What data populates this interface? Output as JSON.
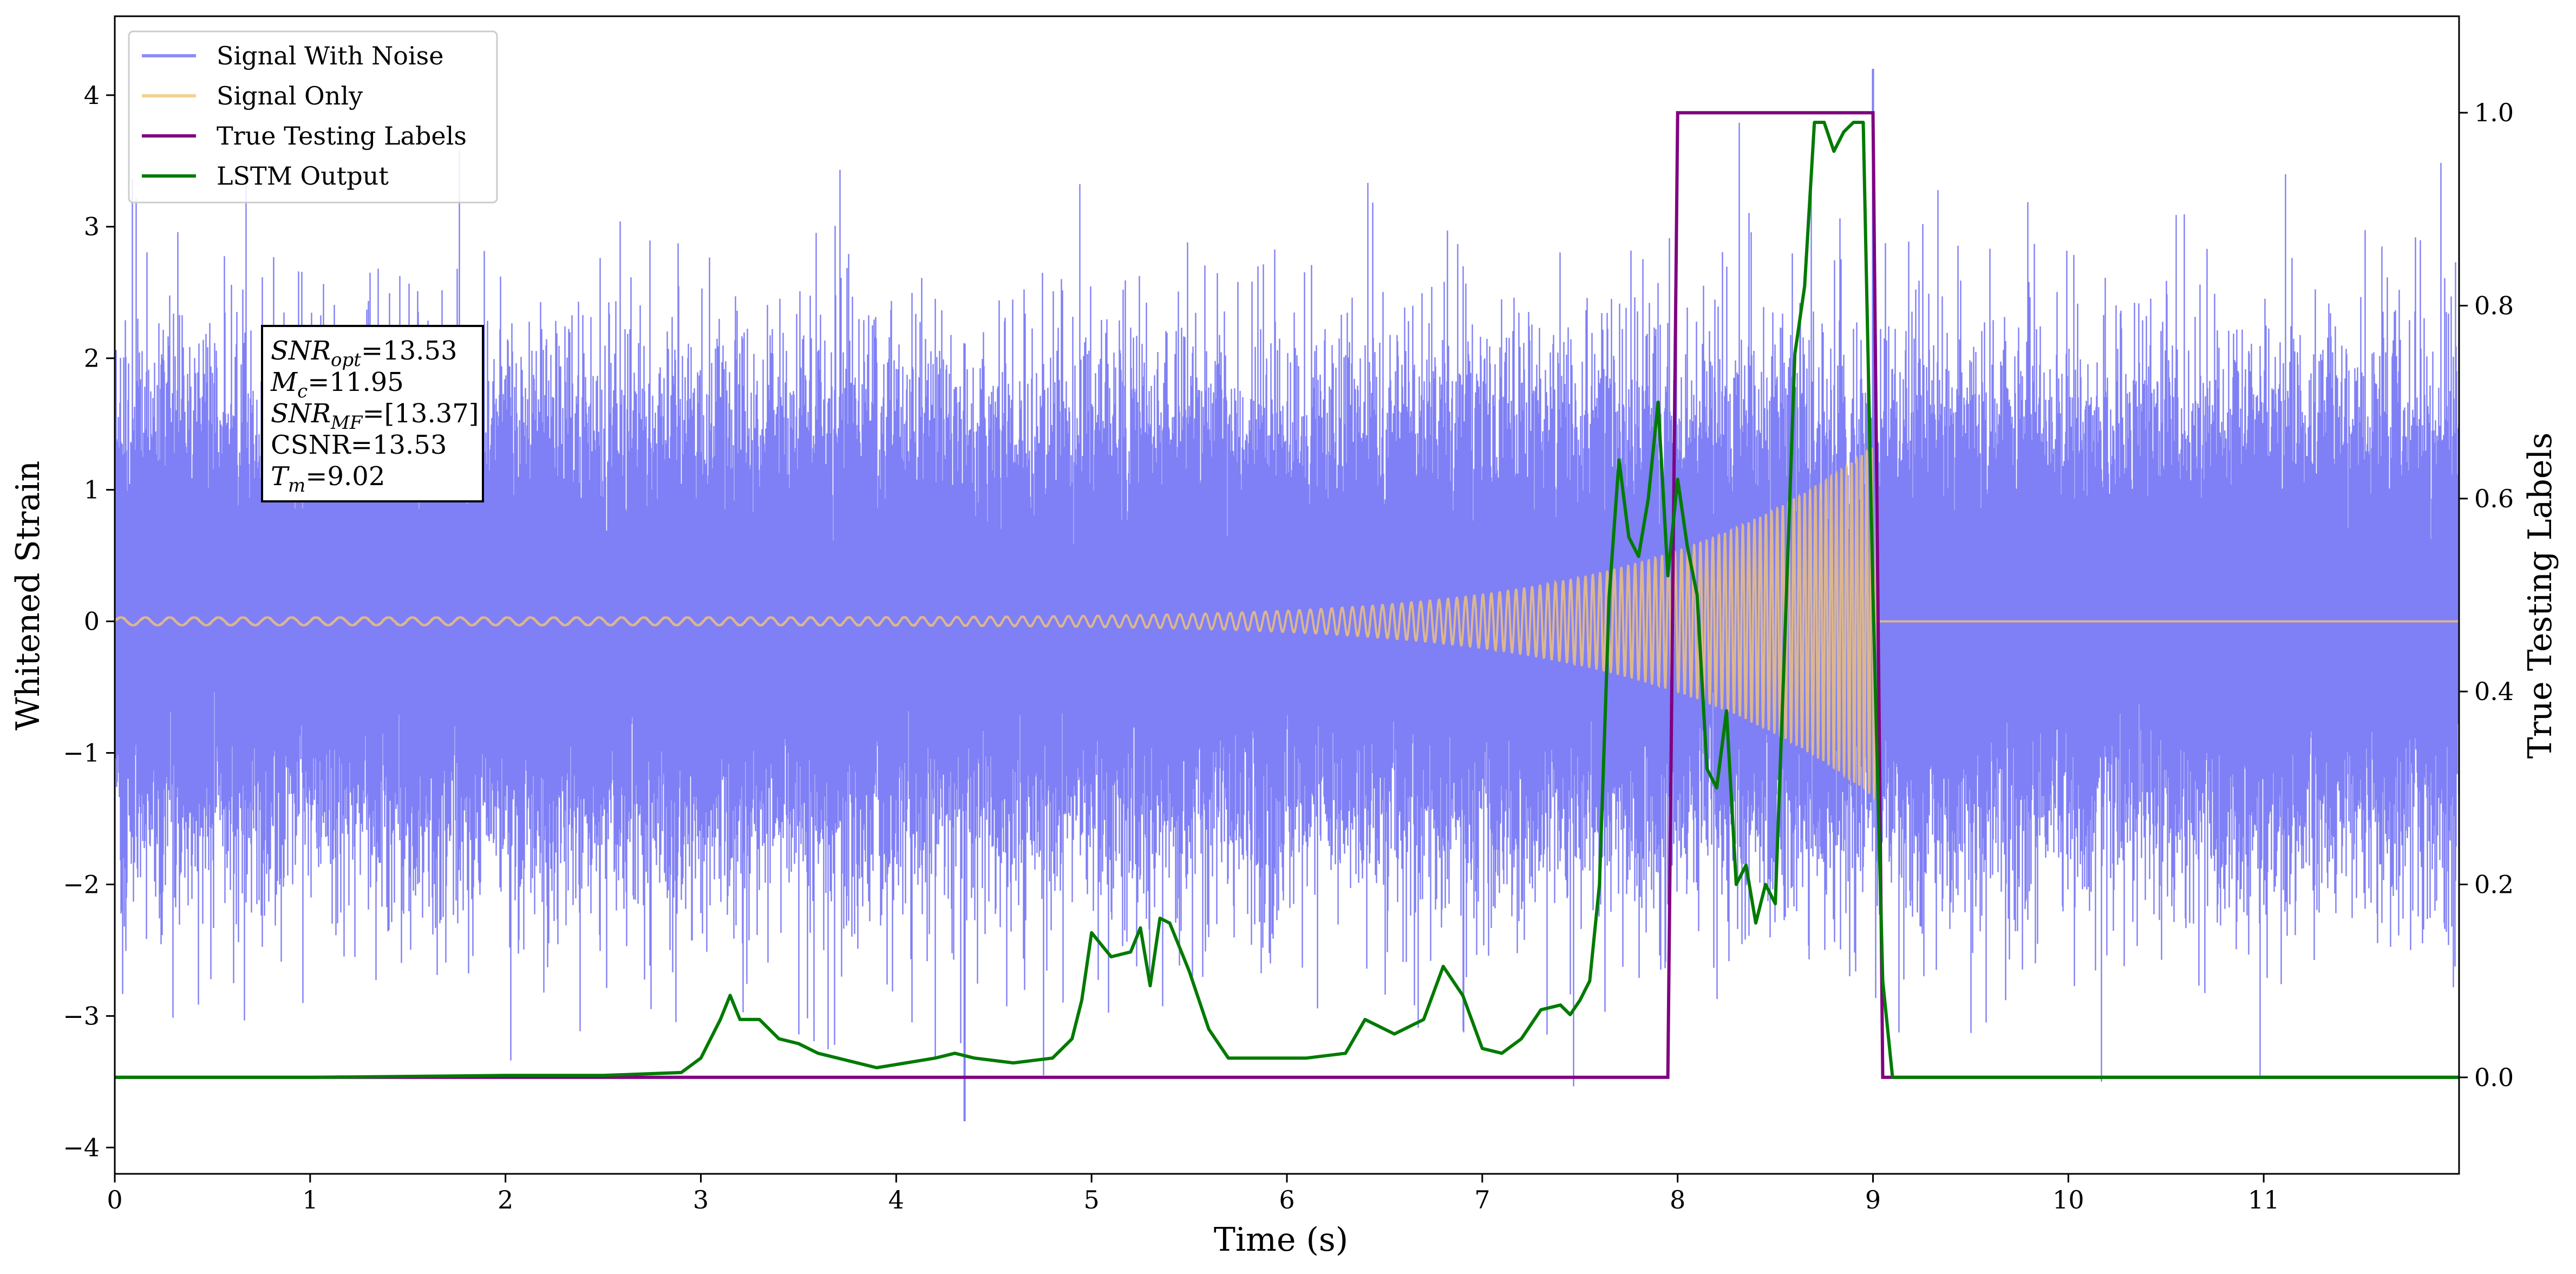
{
  "chart_data": {
    "type": "line",
    "xlabel": "Time (s)",
    "ylabel": "Whitened Strain",
    "ylabel_right": "True Testing Labels",
    "xlim": [
      0,
      12
    ],
    "ylim": [
      -4.2,
      4.6
    ],
    "ylim_right": [
      -0.1,
      1.1
    ],
    "x_ticks": [
      0,
      1,
      2,
      3,
      4,
      5,
      6,
      7,
      8,
      9,
      10,
      11
    ],
    "y_ticks": [
      -4,
      -3,
      -2,
      -1,
      0,
      1,
      2,
      3,
      4
    ],
    "y_right_ticks": [
      0.0,
      0.2,
      0.4,
      0.6,
      0.8,
      1.0
    ],
    "y_tick_labels": [
      "−4",
      "−3",
      "−2",
      "−1",
      "0",
      "1",
      "2",
      "3",
      "4"
    ],
    "y_right_tick_labels": [
      "0.0",
      "0.2",
      "0.4",
      "0.6",
      "0.8",
      "1.0"
    ],
    "grid": false,
    "legend_position": "top-left",
    "series": [
      {
        "name": "Signal With Noise",
        "axis": "left",
        "color": "#7f7ff6",
        "noise_std": 0.85,
        "typical_peak": 2.4,
        "max_value": 4.2,
        "min_value": -3.8
      },
      {
        "name": "Signal Only",
        "axis": "left",
        "color": "#f2c477",
        "chirp_start": 0.0,
        "chirp_end": 9.02,
        "amplitude_start": 0.03,
        "amplitude_end": 1.35,
        "frequency_start_hz": 8,
        "frequency_end_hz": 40
      },
      {
        "name": "True Testing Labels",
        "axis": "right",
        "color": "#800080",
        "x": [
          0,
          7.95,
          8.0,
          9.0,
          9.05,
          12
        ],
        "y": [
          0,
          0,
          1,
          1,
          0,
          0
        ]
      },
      {
        "name": "LSTM Output",
        "axis": "right",
        "color": "#007a00",
        "x": [
          0,
          1.0,
          2.0,
          2.5,
          2.9,
          3.0,
          3.1,
          3.15,
          3.2,
          3.3,
          3.4,
          3.5,
          3.6,
          3.7,
          3.9,
          4.2,
          4.3,
          4.4,
          4.6,
          4.8,
          4.9,
          4.95,
          5.0,
          5.1,
          5.2,
          5.25,
          5.3,
          5.35,
          5.4,
          5.5,
          5.6,
          5.7,
          5.9,
          6.1,
          6.3,
          6.4,
          6.55,
          6.7,
          6.8,
          6.9,
          7.0,
          7.1,
          7.2,
          7.3,
          7.4,
          7.45,
          7.5,
          7.55,
          7.6,
          7.65,
          7.7,
          7.75,
          7.8,
          7.85,
          7.9,
          7.95,
          8.0,
          8.05,
          8.1,
          8.15,
          8.2,
          8.25,
          8.3,
          8.35,
          8.4,
          8.45,
          8.5,
          8.55,
          8.6,
          8.65,
          8.7,
          8.75,
          8.8,
          8.85,
          8.9,
          8.95,
          9.0,
          9.05,
          9.1,
          12.0
        ],
        "y": [
          0,
          0,
          0.002,
          0.002,
          0.005,
          0.02,
          0.06,
          0.085,
          0.06,
          0.06,
          0.04,
          0.035,
          0.025,
          0.02,
          0.01,
          0.02,
          0.025,
          0.02,
          0.015,
          0.02,
          0.04,
          0.08,
          0.15,
          0.125,
          0.13,
          0.155,
          0.095,
          0.165,
          0.16,
          0.11,
          0.05,
          0.02,
          0.02,
          0.02,
          0.025,
          0.06,
          0.045,
          0.06,
          0.115,
          0.085,
          0.03,
          0.025,
          0.04,
          0.07,
          0.075,
          0.065,
          0.08,
          0.1,
          0.2,
          0.5,
          0.64,
          0.56,
          0.54,
          0.6,
          0.7,
          0.52,
          0.62,
          0.55,
          0.5,
          0.32,
          0.3,
          0.38,
          0.2,
          0.22,
          0.16,
          0.2,
          0.18,
          0.46,
          0.75,
          0.82,
          0.99,
          0.99,
          0.96,
          0.98,
          0.99,
          0.99,
          0.5,
          0.1,
          0.0,
          0.0
        ]
      }
    ],
    "annotation": {
      "lines": [
        {
          "base": "SNR",
          "sub": "opt",
          "value": "=13.53"
        },
        {
          "base": "M",
          "sub": "c",
          "value": "=11.95"
        },
        {
          "base": "SNR",
          "sub": "MF",
          "value": "=[13.37]"
        },
        {
          "base": "CSNR",
          "sub": "",
          "value": "=13.53"
        },
        {
          "base": "T",
          "sub": "m",
          "value": "=9.02"
        }
      ]
    }
  }
}
